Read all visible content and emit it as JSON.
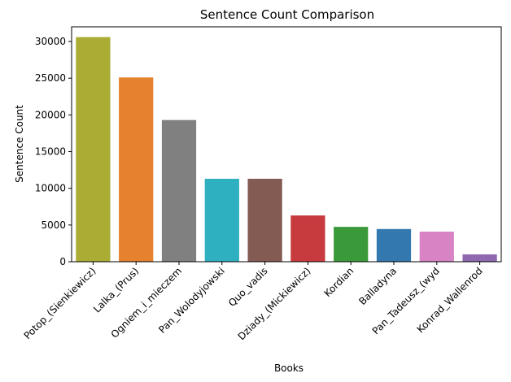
{
  "chart_data": {
    "type": "bar",
    "title": "Sentence Count Comparison",
    "xlabel": "Books",
    "ylabel": "Sentence Count",
    "categories": [
      "Potop_(Sienkiewicz)",
      "Lalka_(Prus)",
      "Ogniem_i_mieczem",
      "Pan_Wolodyjowski",
      "Quo_vadis",
      "Dziady_(Mickiewicz)",
      "Kordian",
      "Balladyna",
      "Pan_Tadeusz_(wyd",
      "Konrad_Wallenrod"
    ],
    "values": [
      30600,
      25100,
      19300,
      11300,
      11300,
      6300,
      4750,
      4450,
      4100,
      1000
    ],
    "colors": [
      "#aaac34",
      "#e6812e",
      "#808080",
      "#2eb0c0",
      "#845b53",
      "#c73a3e",
      "#3a9a3a",
      "#3478b0",
      "#d884c4",
      "#9068ad"
    ],
    "ylim": [
      0,
      32000
    ],
    "yticks": [
      0,
      5000,
      10000,
      15000,
      20000,
      25000,
      30000
    ],
    "grid": false,
    "legend": "none"
  }
}
